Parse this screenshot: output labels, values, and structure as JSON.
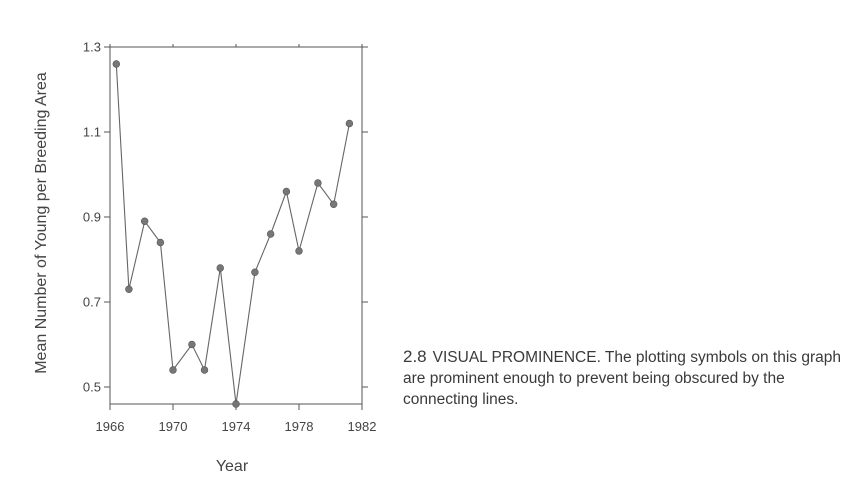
{
  "chart_data": {
    "type": "line",
    "xlabel": "Year",
    "ylabel": "Mean Number of Young per Breeding Area",
    "xlim": [
      1966,
      1982
    ],
    "ylim": [
      0.46,
      1.3
    ],
    "x_ticks": [
      1966,
      1970,
      1974,
      1978,
      1982
    ],
    "y_ticks": [
      0.5,
      0.7,
      0.9,
      1.1,
      1.3
    ],
    "y_tick_labels": [
      "0.5",
      "0.7",
      "0.9",
      "1.1",
      "1.3"
    ],
    "grid": false,
    "series": [
      {
        "x": [
          1966.4,
          1967.2,
          1968.2,
          1969.2,
          1970.0,
          1971.2,
          1972.0,
          1973.0,
          1974.0,
          1975.2,
          1976.2,
          1977.2,
          1978.0,
          1979.2,
          1980.2,
          1981.2
        ],
        "y": [
          1.26,
          0.73,
          0.89,
          0.84,
          0.54,
          0.6,
          0.54,
          0.78,
          0.46,
          0.77,
          0.86,
          0.96,
          0.82,
          0.98,
          0.93,
          1.12
        ],
        "color": "#666666",
        "marker_color": "#777777"
      }
    ]
  },
  "caption": {
    "figure_number": "2.8",
    "text": "VISUAL PROMINENCE.  The plotting symbols on this graph are prominent enough to prevent being obscured by the connecting lines."
  }
}
